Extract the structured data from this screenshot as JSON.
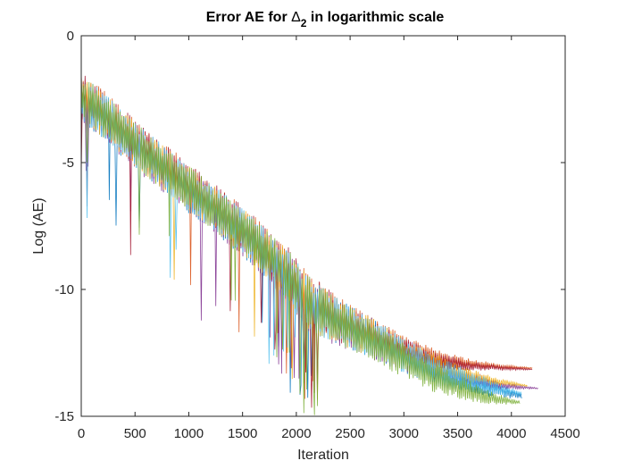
{
  "figure": {
    "title": "Error AE for Δ2 in logarithmic scale",
    "title_parts": {
      "before": "Error AE for ",
      "symbol": "Δ",
      "subscript": "2",
      "after": " in logarithmic scale"
    }
  },
  "chart_data": {
    "type": "line",
    "title": "Error AE for Δ2 in logarithmic scale",
    "xlabel": "Iteration",
    "ylabel": "Log (AE)",
    "xlim": [
      0,
      4500
    ],
    "ylim": [
      -15,
      0
    ],
    "xticks": [
      0,
      500,
      1000,
      1500,
      2000,
      2500,
      3000,
      3500,
      4000,
      4500
    ],
    "yticks": [
      0,
      -5,
      -10,
      -15
    ],
    "grid": false,
    "legend": "none",
    "note_many_series": "Dense overlapping oscillating traces; approximate envelopes below (center, half-band) in data units.",
    "series": [
      {
        "color": "#0072bd",
        "x": [
          0,
          250,
          500,
          1000,
          1500,
          1900,
          2100,
          2400,
          2700,
          3000,
          3300,
          3600,
          3900,
          4100
        ],
        "center": [
          -2.5,
          -3.4,
          -4.4,
          -6.1,
          -7.8,
          -9.4,
          -10.6,
          -11.3,
          -11.9,
          -12.6,
          -13.2,
          -13.7,
          -14.0,
          -14.2
        ],
        "band": [
          0.9,
          0.9,
          0.9,
          0.9,
          0.9,
          1.0,
          1.1,
          0.9,
          0.8,
          0.7,
          0.6,
          0.5,
          0.3,
          0.1
        ]
      },
      {
        "color": "#d95319",
        "x": [
          0,
          250,
          500,
          1000,
          1500,
          1900,
          2100,
          2400,
          2700,
          3000,
          3300,
          3600,
          3900,
          4200
        ],
        "center": [
          -2.3,
          -3.2,
          -4.2,
          -5.9,
          -7.6,
          -9.2,
          -10.4,
          -11.2,
          -11.8,
          -12.3,
          -12.7,
          -12.9,
          -13.05,
          -13.1
        ],
        "band": [
          0.9,
          0.9,
          0.9,
          0.9,
          0.9,
          1.0,
          1.1,
          0.9,
          0.7,
          0.5,
          0.35,
          0.2,
          0.1,
          0.02
        ]
      },
      {
        "color": "#edb120",
        "x": [
          0,
          250,
          500,
          1000,
          1500,
          1900,
          2100,
          2400,
          2700,
          3000,
          3300,
          3600,
          3900,
          4150
        ],
        "center": [
          -2.4,
          -3.3,
          -4.3,
          -6.0,
          -7.7,
          -9.3,
          -10.5,
          -11.3,
          -11.9,
          -12.5,
          -13.0,
          -13.4,
          -13.65,
          -13.8
        ],
        "band": [
          0.9,
          0.9,
          0.9,
          0.9,
          0.9,
          1.0,
          1.1,
          0.9,
          0.8,
          0.6,
          0.5,
          0.3,
          0.15,
          0.03
        ]
      },
      {
        "color": "#7e2f8e",
        "x": [
          0,
          250,
          500,
          1000,
          1500,
          1900,
          2100,
          2400,
          2700,
          3000,
          3300,
          3600,
          3900,
          4250
        ],
        "center": [
          -2.5,
          -3.4,
          -4.4,
          -6.1,
          -7.8,
          -9.4,
          -10.6,
          -11.4,
          -12.0,
          -12.6,
          -13.1,
          -13.5,
          -13.8,
          -13.9
        ],
        "band": [
          0.9,
          0.9,
          0.9,
          0.9,
          0.9,
          1.0,
          1.1,
          0.9,
          0.8,
          0.7,
          0.55,
          0.35,
          0.15,
          0.02
        ]
      },
      {
        "color": "#77ac30",
        "x": [
          0,
          250,
          500,
          1000,
          1500,
          1900,
          2100,
          2400,
          2700,
          3000,
          3300,
          3600,
          3900,
          4080
        ],
        "center": [
          -2.4,
          -3.3,
          -4.3,
          -6.0,
          -7.7,
          -9.3,
          -10.5,
          -11.3,
          -12.0,
          -12.8,
          -13.5,
          -14.0,
          -14.35,
          -14.45
        ],
        "band": [
          0.9,
          0.9,
          0.9,
          0.9,
          0.9,
          1.0,
          1.1,
          0.9,
          0.8,
          0.7,
          0.6,
          0.45,
          0.2,
          0.05
        ]
      },
      {
        "color": "#4dbeee",
        "x": [
          0,
          250,
          500,
          1000,
          1500,
          1900,
          2100,
          2400,
          2700,
          3000,
          3300,
          3600,
          3900,
          4100
        ],
        "center": [
          -2.4,
          -3.3,
          -4.3,
          -6.0,
          -7.7,
          -9.3,
          -10.5,
          -11.3,
          -11.9,
          -12.6,
          -13.2,
          -13.6,
          -13.95,
          -14.1
        ],
        "band": [
          0.9,
          0.9,
          0.9,
          0.9,
          0.9,
          1.0,
          1.1,
          0.9,
          0.8,
          0.7,
          0.6,
          0.45,
          0.25,
          0.05
        ]
      },
      {
        "color": "#a2142f",
        "x": [
          0,
          250,
          500,
          1000,
          1500,
          1900,
          2100,
          2400,
          2700,
          3000,
          3300,
          3600,
          3900,
          4200
        ],
        "center": [
          -2.3,
          -3.2,
          -4.2,
          -5.9,
          -7.6,
          -9.2,
          -10.4,
          -11.2,
          -11.8,
          -12.4,
          -12.8,
          -13.0,
          -13.1,
          -13.15
        ],
        "band": [
          0.9,
          0.9,
          0.9,
          0.9,
          0.9,
          1.0,
          1.1,
          0.9,
          0.7,
          0.5,
          0.35,
          0.2,
          0.1,
          0.02
        ]
      }
    ]
  }
}
